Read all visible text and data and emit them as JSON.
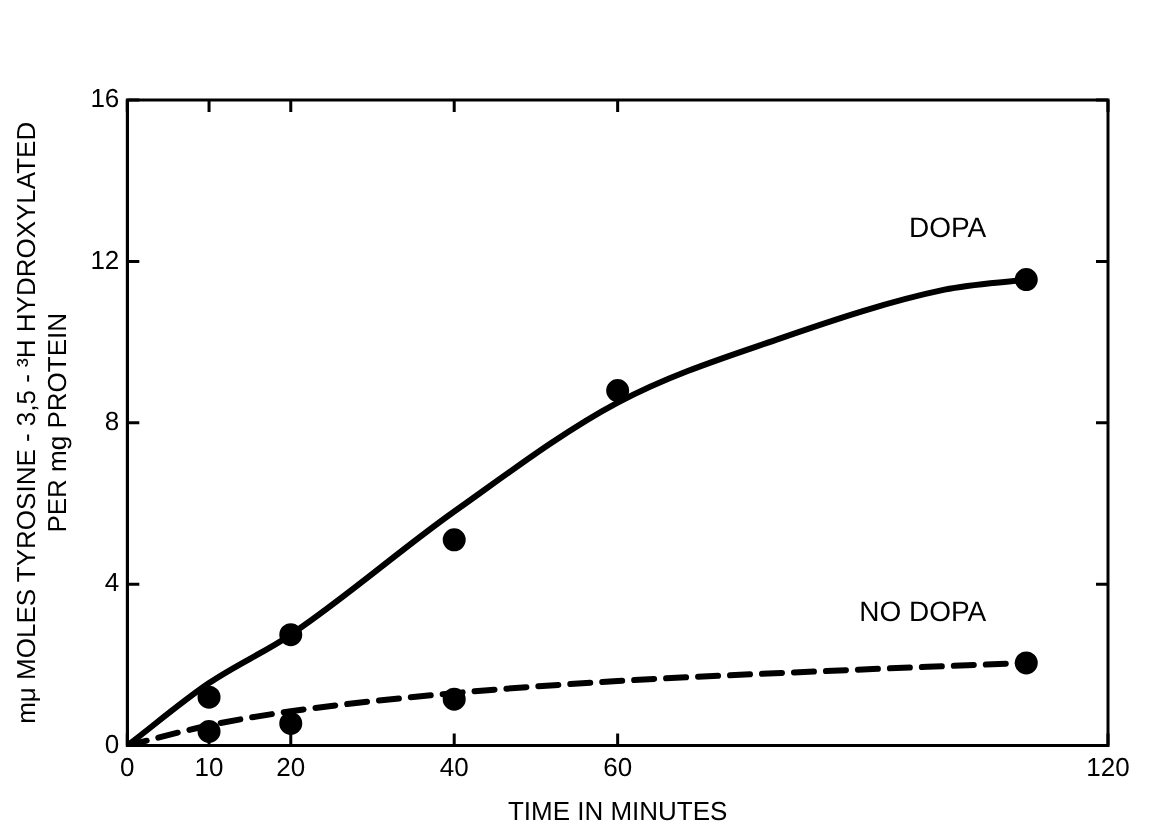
{
  "chart_data": {
    "type": "scatter",
    "xlabel": "TIME IN MINUTES",
    "ylabel": "mμ MOLES TYROSINE - 3,5 - ³H HYDROXYLATED\nPER mg PROTEIN",
    "xlim": [
      0,
      120
    ],
    "ylim": [
      0,
      16
    ],
    "xticks": [
      0,
      10,
      20,
      40,
      60,
      120
    ],
    "yticks": [
      0,
      4,
      8,
      12,
      16
    ],
    "grid": false,
    "legend": false,
    "series": [
      {
        "type": "line",
        "name": "DOPA",
        "color": "#000000",
        "line_style": "solid",
        "marker": "none",
        "x": [
          0,
          10,
          20,
          40,
          60,
          80,
          100,
          110
        ],
        "values": [
          0,
          1.55,
          2.75,
          5.8,
          8.5,
          10.1,
          11.3,
          11.55
        ]
      },
      {
        "type": "line",
        "name": "NO DOPA",
        "color": "#000000",
        "line_style": "dashed",
        "marker": "none",
        "x": [
          0,
          10,
          20,
          40,
          60,
          80,
          110
        ],
        "values": [
          0,
          0.5,
          0.85,
          1.3,
          1.6,
          1.8,
          2.05
        ]
      },
      {
        "color": "#000000",
        "marker": "circle",
        "x": [
          10,
          20,
          40,
          60,
          110
        ],
        "values": [
          1.2,
          2.75,
          5.1,
          8.8,
          11.55
        ]
      },
      {
        "color": "#000000",
        "marker": "circle",
        "x": [
          10,
          20,
          40,
          110
        ],
        "values": [
          0.35,
          0.55,
          1.15,
          2.05
        ]
      }
    ]
  }
}
